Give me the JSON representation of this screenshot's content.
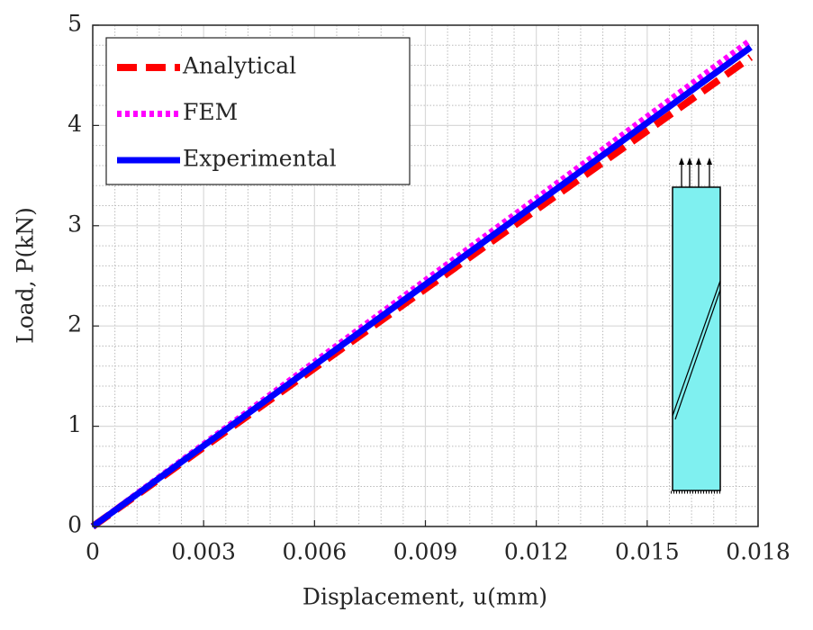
{
  "chart_data": {
    "type": "line",
    "xlabel": "Displacement, u(mm)",
    "ylabel": "Load, P(kN)",
    "x": [
      0,
      0.006,
      0.012,
      0.0178
    ],
    "series": [
      {
        "name": "Analytical",
        "color": "#ff0000",
        "style": "dashed",
        "values": [
          0,
          1.58,
          3.16,
          4.68
        ]
      },
      {
        "name": "FEM",
        "color": "#ff00ff",
        "style": "dotted",
        "values": [
          0,
          1.64,
          3.27,
          4.85
        ]
      },
      {
        "name": "Experimental",
        "color": "#0000ff",
        "style": "solid",
        "values": [
          0,
          1.61,
          3.22,
          4.78
        ]
      }
    ],
    "xlim": [
      0,
      0.018
    ],
    "xticks": [
      0,
      0.003,
      0.006,
      0.009,
      0.012,
      0.015,
      0.018
    ],
    "ylim": [
      0,
      5
    ],
    "yticks": [
      0,
      1,
      2,
      3,
      4,
      5
    ],
    "grid": true,
    "minor_grid": true,
    "legend": "upper left"
  }
}
